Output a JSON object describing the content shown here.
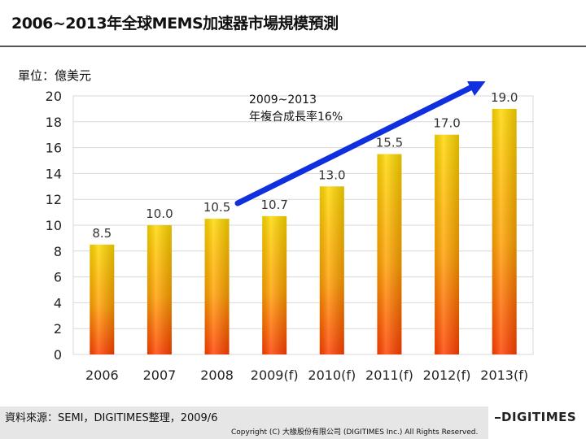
{
  "title": "2006~2013年全球MEMS加速器市場規模預測",
  "unit_label": "單位：億美元",
  "source": "資料來源：SEMI，DIGITIMES整理，2009/6",
  "copyright": "Copyright (C) 大椽股份有限公司 (DIGITIMES Inc.) All Rights Reserved.",
  "logo_text": "DIGITIMES",
  "chart_data": {
    "type": "bar",
    "title": "",
    "xlabel": "",
    "ylabel": "",
    "categories": [
      "2006",
      "2007",
      "2008",
      "2009(f)",
      "2010(f)",
      "2011(f)",
      "2012(f)",
      "2013(f)"
    ],
    "values": [
      8.5,
      10.0,
      10.5,
      10.7,
      13.0,
      15.5,
      17.0,
      19.0
    ],
    "value_labels": [
      "8.5",
      "10.0",
      "10.5",
      "10.7",
      "13.0",
      "15.5",
      "17.0",
      "19.0"
    ],
    "ylim": [
      0,
      20
    ],
    "yticks": [
      0,
      2,
      4,
      6,
      8,
      10,
      12,
      14,
      16,
      18,
      20
    ],
    "grid": true,
    "annotation": {
      "line1": "2009~2013",
      "line2": "年複合成長率16%"
    },
    "colors": {
      "bar_top": "#ffd800",
      "bar_bottom": "#ff4000",
      "arrow": "#1030e0"
    }
  }
}
